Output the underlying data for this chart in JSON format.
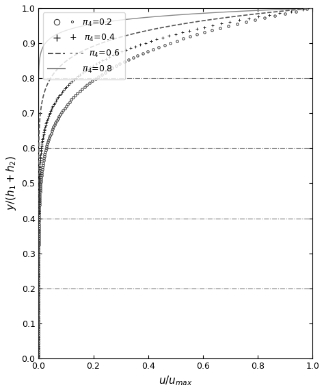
{
  "xlim": [
    0,
    1
  ],
  "ylim": [
    0,
    1
  ],
  "xticks": [
    0,
    0.2,
    0.4,
    0.6,
    0.8,
    1.0
  ],
  "yticks": [
    0,
    0.1,
    0.2,
    0.3,
    0.4,
    0.5,
    0.6,
    0.7,
    0.8,
    0.9,
    1.0
  ],
  "hlines": [
    0.2,
    0.4,
    0.6,
    0.8
  ],
  "curves": [
    {
      "pi4": 0.2,
      "power": 7.0,
      "style": "o",
      "color": "#333333",
      "markersize": 2.5
    },
    {
      "pi4": 0.4,
      "power": 9.0,
      "style": "+",
      "color": "#222222",
      "markersize": 3.0
    },
    {
      "pi4": 0.6,
      "power": 14.0,
      "style": "--",
      "color": "#555555",
      "linewidth": 1.2
    },
    {
      "pi4": 0.8,
      "power": 35.0,
      "style": "-",
      "color": "#888888",
      "linewidth": 1.0
    }
  ],
  "legend_labels": [
    "π₄=0.2",
    "π₄=0.4",
    "π₄=0.6",
    "π₄=0.8"
  ],
  "figsize": [
    4.74,
    5.72
  ],
  "dpi": 100,
  "bg_color": "#ffffff"
}
